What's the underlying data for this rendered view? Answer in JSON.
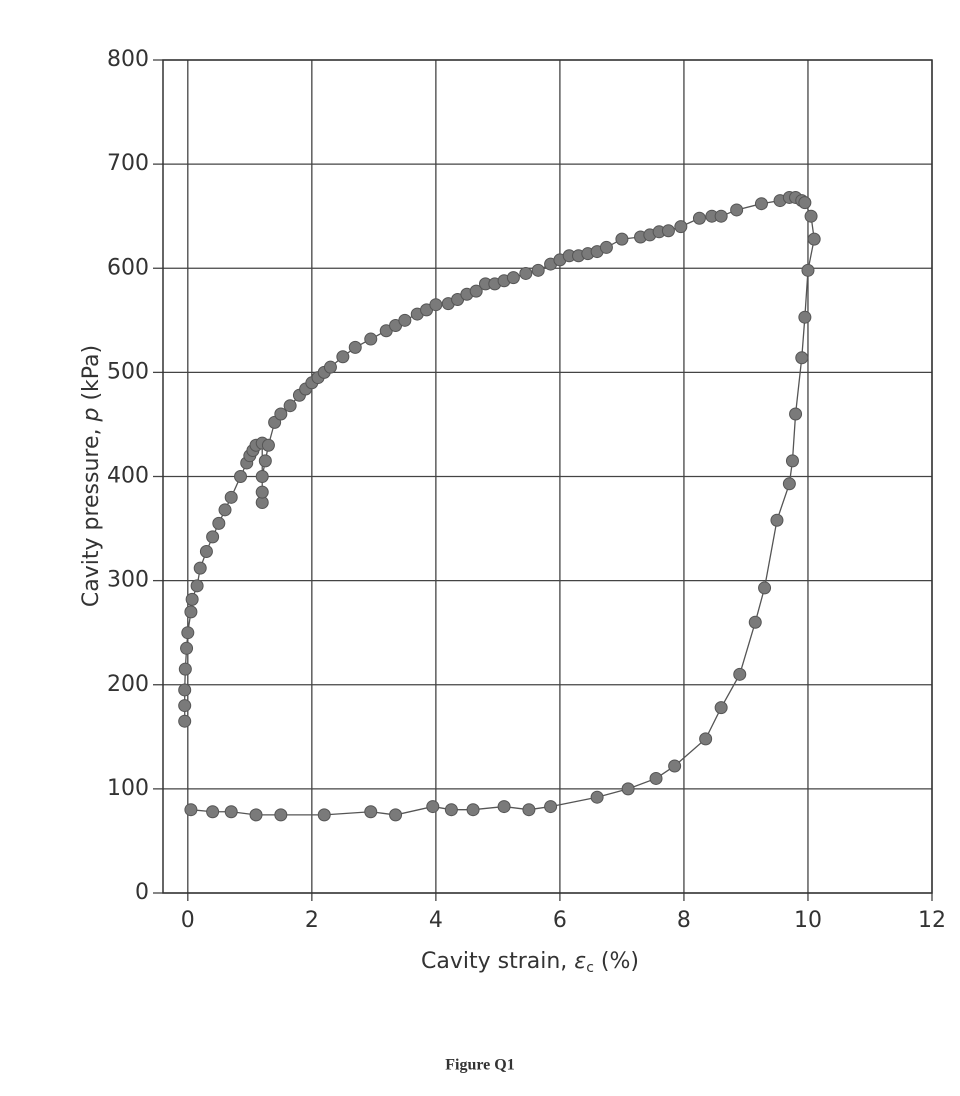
{
  "chart_data": {
    "type": "scatter",
    "connect": true,
    "xlabel": [
      "Cavity strain, ",
      "ε",
      "c",
      " (%)"
    ],
    "ylabel": [
      "Cavity pressure, ",
      "p",
      " (kPa)"
    ],
    "caption": "Figure Q1",
    "xlim": [
      -0.4,
      12
    ],
    "xticks": [
      0,
      2,
      4,
      6,
      8,
      10,
      12
    ],
    "ylim": [
      0,
      800
    ],
    "yticks": [
      0,
      100,
      200,
      300,
      400,
      500,
      600,
      700,
      800
    ],
    "grid": true,
    "color": "#7a7a7a",
    "line_color": "#555555",
    "x": [
      -0.05,
      -0.05,
      -0.05,
      -0.04,
      -0.02,
      0,
      0.05,
      0.07,
      0.15,
      0.2,
      0.3,
      0.4,
      0.5,
      0.6,
      0.7,
      0.85,
      0.95,
      1.0,
      1.05,
      1.1,
      1.2,
      1.2,
      1.2,
      1.2,
      1.25,
      1.3,
      1.4,
      1.5,
      1.65,
      1.8,
      1.9,
      2.0,
      2.1,
      2.2,
      2.3,
      2.5,
      2.7,
      2.95,
      3.2,
      3.35,
      3.5,
      3.7,
      3.85,
      4.0,
      4.2,
      4.35,
      4.5,
      4.65,
      4.8,
      4.95,
      5.1,
      5.25,
      5.45,
      5.65,
      5.85,
      6.0,
      6.15,
      6.3,
      6.45,
      6.6,
      6.75,
      7.0,
      7.3,
      7.45,
      7.6,
      7.75,
      7.95,
      8.25,
      8.45,
      8.6,
      8.85,
      9.25,
      9.55,
      9.7,
      9.8,
      9.9,
      9.95,
      10.05,
      10.1,
      10.0,
      9.95,
      9.9,
      9.8,
      9.75,
      9.7,
      9.5,
      9.3,
      9.15,
      8.9,
      8.6,
      8.35,
      7.85,
      7.55,
      7.1,
      6.6,
      5.85,
      5.5,
      5.1,
      4.6,
      4.25,
      3.95,
      3.35,
      2.95,
      2.2,
      1.5,
      1.1,
      0.7,
      0.4,
      0.05
    ],
    "values": [
      165,
      180,
      195,
      215,
      235,
      250,
      270,
      282,
      295,
      312,
      328,
      342,
      355,
      368,
      380,
      400,
      413,
      420,
      425,
      430,
      432,
      375,
      385,
      400,
      415,
      430,
      452,
      460,
      468,
      478,
      484,
      490,
      495,
      500,
      505,
      515,
      524,
      532,
      540,
      545,
      550,
      556,
      560,
      565,
      566,
      570,
      575,
      578,
      585,
      585,
      588,
      591,
      595,
      598,
      604,
      608,
      612,
      612,
      614,
      616,
      620,
      628,
      630,
      632,
      635,
      636,
      640,
      648,
      650,
      650,
      656,
      662,
      665,
      668,
      668,
      665,
      663,
      650,
      628,
      598,
      553,
      514,
      460,
      415,
      393,
      358,
      293,
      260,
      210,
      178,
      148,
      122,
      110,
      100,
      92,
      83,
      80,
      83,
      80,
      80,
      83,
      75,
      78,
      75,
      75,
      75,
      78,
      78,
      80
    ]
  }
}
